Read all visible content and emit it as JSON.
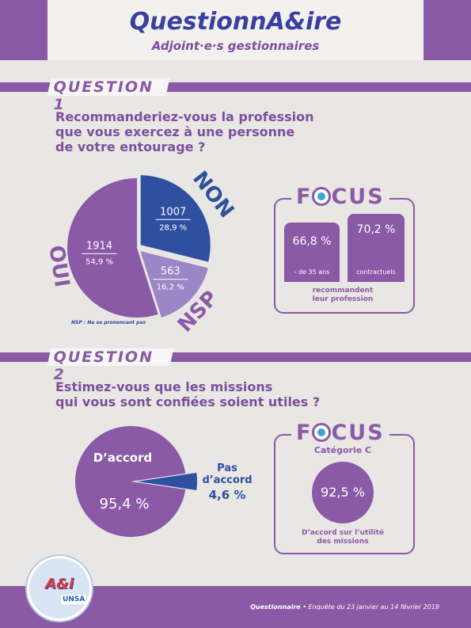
{
  "header": {
    "title": "QuestionnA&ire",
    "subtitle": "Adjoint·e·s gestionnaires"
  },
  "q1": {
    "label": "QUESTION 1",
    "text": "Recommanderiez-vous la profession\nque vous exercez à une personne\nde votre entourage ?",
    "note": "NSP : Ne se prononcent pas",
    "focus": {
      "title_a": "F",
      "title_b": "CUS",
      "bars": [
        {
          "value": "66,8 %",
          "label": "- de 35 ans"
        },
        {
          "value": "70,2 %",
          "label": "contractuels"
        }
      ],
      "caption": "recommandent\nleur profession"
    }
  },
  "q2": {
    "label": "QUESTION 2",
    "text": "Estimez-vous que les missions\nqui vous sont confiées soient utiles ?",
    "focus": {
      "title_a": "F",
      "title_b": "CUS",
      "category": "Catégorie C",
      "value": "92,5 %",
      "caption": "D’accord sur l’utilité\ndes missions"
    }
  },
  "chart_data": [
    {
      "type": "pie",
      "slices": [
        {
          "label": "OUI",
          "count": "1914",
          "percent": "54,9 %",
          "value": 54.9,
          "color": "#8a5aa6"
        },
        {
          "label": "NON",
          "count": "1007",
          "percent": "28,9 %",
          "value": 28.9,
          "color": "#2f4fa0"
        },
        {
          "label": "NSP",
          "count": "563",
          "percent": "16,2 %",
          "value": 16.2,
          "color": "#9b86c6"
        }
      ]
    },
    {
      "type": "pie",
      "slices": [
        {
          "label": "D’accord",
          "percent": "95,4 %",
          "value": 95.4,
          "color": "#8a5aa6"
        },
        {
          "label": "Pas\nd’accord",
          "percent": "4,6 %",
          "value": 4.6,
          "color": "#2f4fa0"
        }
      ]
    }
  ],
  "logo": {
    "text": "A&i",
    "sub": "UNSA"
  },
  "footer": {
    "title": "Questionnaire",
    "text": " • Enquête du 23 janvier au 14 février 2019"
  },
  "colors": {
    "purple": "#8a5aa6",
    "blue": "#2f4fa0",
    "light_purple": "#9b86c6"
  }
}
